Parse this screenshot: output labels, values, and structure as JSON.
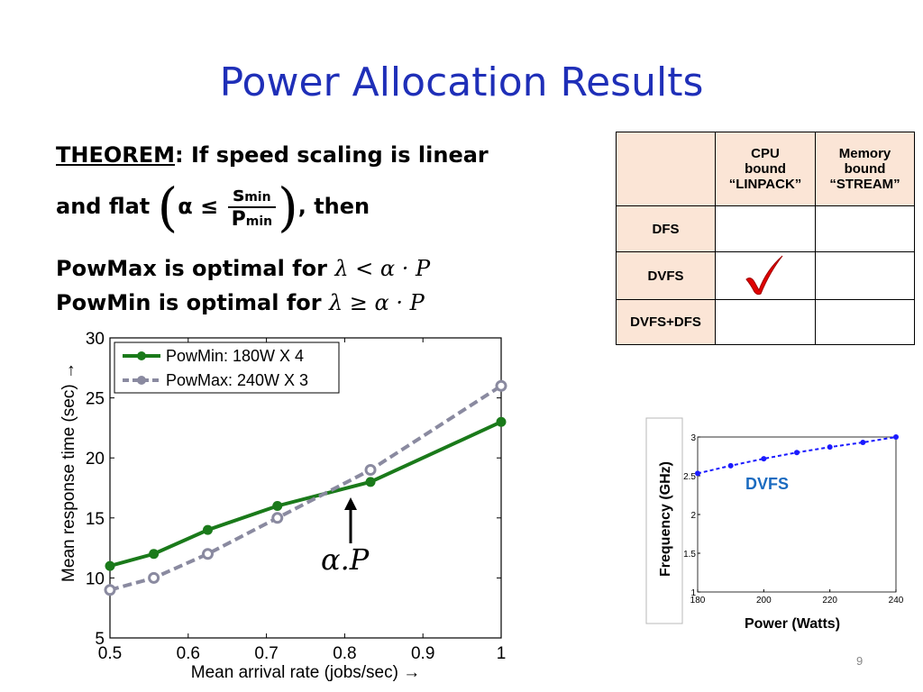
{
  "slide": {
    "title": "Power Allocation Results",
    "page_number": "9"
  },
  "theorem": {
    "label": "THEOREM",
    "line1": ": If speed scaling is linear",
    "line2_prefix": "and flat",
    "alpha": "α",
    "leq": "≤",
    "frac_num": "s",
    "frac_num_sub": "min",
    "frac_den": "P",
    "frac_den_sub": "min",
    "line2_suffix": ", then",
    "powmax_text": "PowMax is optimal for",
    "powmax_cond": "λ < α · P",
    "powmin_text": "PowMin is optimal for",
    "powmin_cond": "λ ≥ α · P"
  },
  "table": {
    "headers": [
      "",
      "CPU bound “LINPACK”",
      "Memory bound “STREAM”"
    ],
    "header_lines": [
      [
        "CPU",
        "bound",
        "“LINPACK”"
      ],
      [
        "Memory",
        "bound",
        "“STREAM”"
      ]
    ],
    "rows": [
      {
        "label": "DFS",
        "cpu_check": false,
        "mem_check": false
      },
      {
        "label": "DVFS",
        "cpu_check": true,
        "mem_check": false
      },
      {
        "label": "DVFS+DFS",
        "cpu_check": false,
        "mem_check": false
      }
    ],
    "check_color": "#e00000"
  },
  "chart_data": [
    {
      "type": "line",
      "xlabel": "Mean arrival rate (jobs/sec) →",
      "ylabel": "Mean response time (sec) →",
      "xlim": [
        0.5,
        1
      ],
      "ylim": [
        5,
        30
      ],
      "xticks": [
        "0.5",
        "0.6",
        "0.7",
        "0.8",
        "0.9",
        "1"
      ],
      "yticks": [
        "5",
        "10",
        "15",
        "20",
        "25",
        "30"
      ],
      "legend_position": "top-left",
      "annotation": "α.P",
      "series": [
        {
          "name": "PowMin: 180W X 4",
          "color": "#1a7a1a",
          "style": "solid",
          "x": [
            0.5,
            0.556,
            0.625,
            0.714,
            0.833,
            1.0
          ],
          "y": [
            11,
            12,
            14,
            16,
            18,
            23
          ]
        },
        {
          "name": "PowMax: 240W X 3",
          "color": "#8a8aa0",
          "style": "dashed",
          "x": [
            0.5,
            0.556,
            0.625,
            0.714,
            0.833,
            1.0
          ],
          "y": [
            9,
            10,
            12,
            15,
            19,
            26
          ]
        }
      ]
    },
    {
      "type": "line",
      "xlabel": "Power (Watts)",
      "ylabel": "Frequency (GHz)",
      "xlim": [
        180,
        240
      ],
      "ylim": [
        1,
        3
      ],
      "xticks": [
        "180",
        "200",
        "220",
        "240"
      ],
      "yticks": [
        "1",
        "1.5",
        "2",
        "2.5",
        "3"
      ],
      "annotation": "DVFS",
      "series": [
        {
          "color": "#1a1aff",
          "style": "dashed",
          "x": [
            180,
            190,
            200,
            210,
            220,
            230,
            240
          ],
          "y": [
            2.53,
            2.63,
            2.72,
            2.8,
            2.87,
            2.93,
            3.0
          ]
        }
      ]
    }
  ]
}
